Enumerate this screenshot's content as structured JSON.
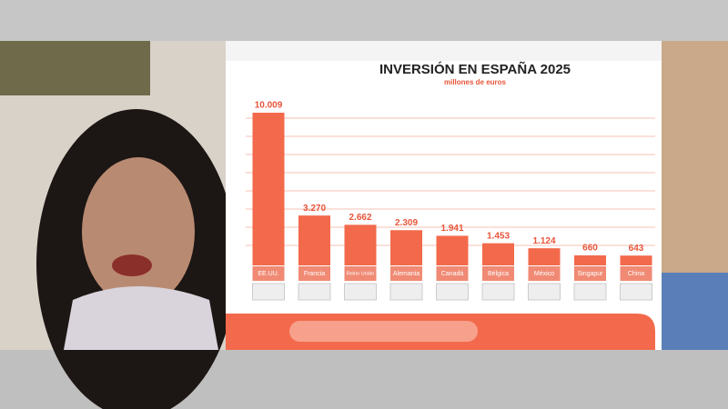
{
  "chart_data": {
    "type": "bar",
    "title": "INVERSIÓN EN ESPAÑA 2025",
    "subtitle": "millones de euros",
    "categories": [
      "EE.UU.",
      "Francia",
      "Reino Unido",
      "Alemania",
      "Canadá",
      "Bélgica",
      "México",
      "Singapur",
      "China"
    ],
    "values": [
      10009,
      3270,
      2662,
      2309,
      1941,
      1453,
      1124,
      660,
      643
    ],
    "value_labels": [
      "10.009",
      "3.270",
      "2.662",
      "2.309",
      "1.941",
      "1.453",
      "1.124",
      "660",
      "643"
    ],
    "color": "#f26a4b"
  }
}
